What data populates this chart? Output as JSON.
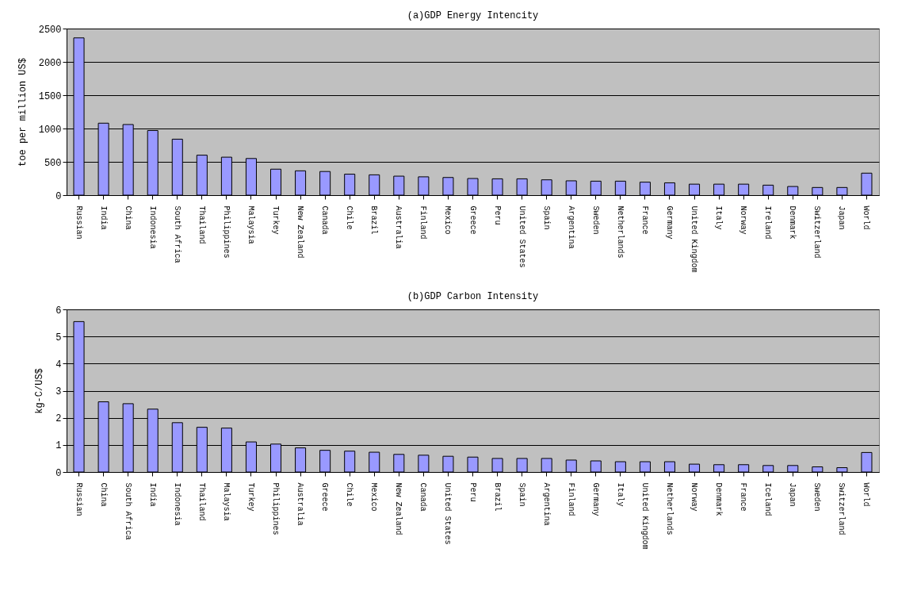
{
  "chart_data": [
    {
      "type": "bar",
      "title": "(a)GDP Energy Intencity",
      "ylabel": "toe per million US$",
      "categories": [
        "Russian",
        "India",
        "China",
        "Indonesia",
        "South Africa",
        "Thailand",
        "Philippines",
        "Malaysia",
        "Turkey",
        "New Zealand",
        "Canada",
        "Chile",
        "Brazil",
        "Australia",
        "Finland",
        "Mexico",
        "Greece",
        "Peru",
        "United States",
        "Spain",
        "Argentina",
        "Sweden",
        "Netherlands",
        "France",
        "Germany",
        "United Kingdom",
        "Italy",
        "Norway",
        "Ireland",
        "Denmark",
        "Switzerland",
        "Japan",
        "World"
      ],
      "values": [
        2360,
        1080,
        1060,
        970,
        840,
        600,
        570,
        550,
        390,
        365,
        355,
        315,
        305,
        285,
        275,
        265,
        250,
        245,
        245,
        230,
        215,
        210,
        210,
        195,
        185,
        165,
        165,
        165,
        150,
        130,
        115,
        115,
        330
      ],
      "color": "#9999ff",
      "ylim": [
        0,
        2500
      ],
      "yticks": [
        0,
        500,
        1000,
        1500,
        2000,
        2500
      ],
      "grid": "y"
    },
    {
      "type": "bar",
      "title": "(b)GDP Carbon Intensity",
      "ylabel": "kg-C/US$",
      "categories": [
        "Russian",
        "China",
        "South Africa",
        "India",
        "Indonesia",
        "Thailand",
        "Malaysia",
        "Turkey",
        "Philippines",
        "Australia",
        "Greece",
        "Chile",
        "Mexico",
        "New Zealand",
        "Canada",
        "United States",
        "Peru",
        "Brazil",
        "Spain",
        "Argentina",
        "Finland",
        "Germany",
        "Italy",
        "United Kingdom",
        "Netherlands",
        "Norway",
        "Denmark",
        "France",
        "Iceland",
        "Japan",
        "Sweden",
        "Switzerland",
        "World"
      ],
      "values": [
        5.55,
        2.59,
        2.52,
        2.32,
        1.82,
        1.65,
        1.62,
        1.11,
        1.03,
        0.89,
        0.8,
        0.77,
        0.73,
        0.65,
        0.62,
        0.58,
        0.55,
        0.5,
        0.5,
        0.5,
        0.44,
        0.41,
        0.38,
        0.38,
        0.38,
        0.29,
        0.27,
        0.27,
        0.24,
        0.24,
        0.19,
        0.16,
        0.72
      ],
      "color": "#9999ff",
      "ylim": [
        0,
        6
      ],
      "yticks": [
        0,
        1,
        2,
        3,
        4,
        5,
        6
      ],
      "grid": "y"
    }
  ]
}
